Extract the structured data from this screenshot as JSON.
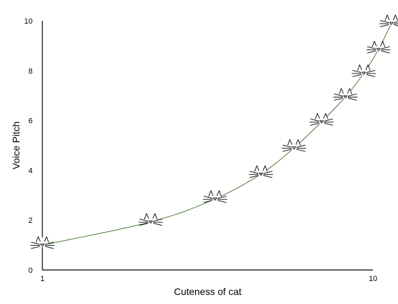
{
  "chart_data": {
    "type": "line",
    "title": "",
    "xlabel": "Cuteness of cat",
    "ylabel": "Voice Pitch",
    "xlim": [
      1,
      10
    ],
    "ylim": [
      0,
      10
    ],
    "x_ticks": [
      1,
      10
    ],
    "y_ticks": [
      0,
      2,
      4,
      6,
      8,
      10
    ],
    "grid": false,
    "legend": "none",
    "marker": "cat-face",
    "line_color": "#4a7a32",
    "series": [
      {
        "x": [
          1.0,
          3.95,
          5.7,
          6.95,
          7.85,
          8.6,
          9.25,
          9.75,
          10.15,
          10.5
        ],
        "y": [
          1.0,
          1.93,
          2.85,
          3.85,
          4.9,
          5.95,
          6.95,
          7.9,
          8.85,
          9.9
        ]
      }
    ]
  }
}
